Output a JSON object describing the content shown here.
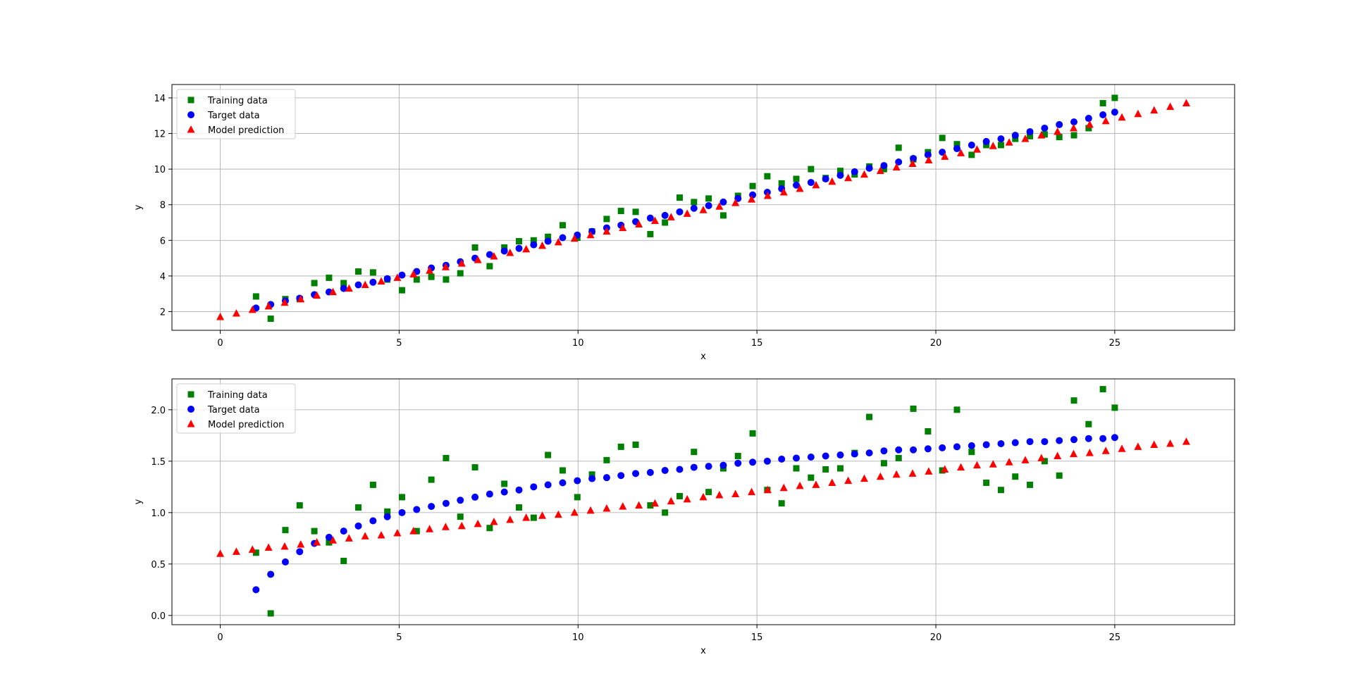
{
  "colors": {
    "training": "#008000",
    "target": "#0000ff",
    "prediction": "#ff0000"
  },
  "chart_data": [
    {
      "type": "scatter",
      "xlabel": "x",
      "ylabel": "y",
      "xlim": [
        -1.35,
        28.35
      ],
      "ylim": [
        0.95,
        14.75
      ],
      "xticks": [
        0,
        5,
        10,
        15,
        20,
        25
      ],
      "yticks": [
        2,
        4,
        6,
        8,
        10,
        12,
        14
      ],
      "ytick_labels": [
        "2",
        "4",
        "6",
        "8",
        "10",
        "12",
        "14"
      ],
      "grid": true,
      "legend": "top-left",
      "series": [
        {
          "name": "Training data",
          "marker": "square",
          "color": "#008000",
          "x": [
            1.0,
            1.41,
            1.82,
            2.22,
            2.63,
            3.04,
            3.45,
            3.86,
            4.27,
            4.67,
            5.08,
            5.49,
            5.9,
            6.31,
            6.71,
            7.12,
            7.53,
            7.94,
            8.35,
            8.76,
            9.16,
            9.57,
            9.98,
            10.39,
            10.8,
            11.2,
            11.61,
            12.02,
            12.43,
            12.84,
            13.24,
            13.65,
            14.06,
            14.47,
            14.88,
            15.29,
            15.69,
            16.1,
            16.51,
            16.92,
            17.33,
            17.73,
            18.14,
            18.55,
            18.96,
            19.37,
            19.78,
            20.18,
            20.59,
            21.0,
            21.41,
            21.82,
            22.22,
            22.63,
            23.04,
            23.45,
            23.86,
            24.27,
            24.67,
            25.0
          ],
          "y": [
            2.85,
            1.6,
            2.7,
            2.7,
            3.6,
            3.9,
            3.6,
            4.25,
            4.2,
            3.8,
            3.2,
            3.8,
            3.95,
            3.8,
            4.15,
            5.6,
            4.55,
            5.6,
            5.95,
            6.0,
            6.2,
            6.85,
            6.15,
            6.5,
            7.2,
            7.65,
            7.6,
            6.35,
            7.0,
            8.4,
            8.15,
            8.35,
            7.4,
            8.5,
            9.05,
            9.6,
            9.2,
            9.45,
            10.0,
            9.5,
            9.9,
            9.7,
            10.15,
            10.0,
            11.2,
            10.55,
            10.95,
            11.75,
            11.4,
            10.8,
            11.35,
            11.35,
            11.7,
            11.85,
            11.95,
            11.8,
            11.9,
            12.3,
            13.7,
            14.0
          ]
        },
        {
          "name": "Target data",
          "marker": "circle",
          "color": "#0000ff",
          "x": [
            1.0,
            1.41,
            1.82,
            2.22,
            2.63,
            3.04,
            3.45,
            3.86,
            4.27,
            4.67,
            5.08,
            5.49,
            5.9,
            6.31,
            6.71,
            7.12,
            7.53,
            7.94,
            8.35,
            8.76,
            9.16,
            9.57,
            9.98,
            10.39,
            10.8,
            11.2,
            11.61,
            12.02,
            12.43,
            12.84,
            13.24,
            13.65,
            14.06,
            14.47,
            14.88,
            15.29,
            15.69,
            16.1,
            16.51,
            16.92,
            17.33,
            17.73,
            18.14,
            18.55,
            18.96,
            19.37,
            19.78,
            20.18,
            20.59,
            21.0,
            21.41,
            21.82,
            22.22,
            22.63,
            23.04,
            23.45,
            23.86,
            24.27,
            24.67,
            25.0
          ],
          "y": [
            2.2,
            2.4,
            2.6,
            2.75,
            2.95,
            3.1,
            3.3,
            3.5,
            3.65,
            3.85,
            4.05,
            4.25,
            4.45,
            4.6,
            4.8,
            5.0,
            5.2,
            5.4,
            5.55,
            5.75,
            5.95,
            6.15,
            6.3,
            6.5,
            6.7,
            6.85,
            7.05,
            7.25,
            7.4,
            7.6,
            7.8,
            7.95,
            8.15,
            8.35,
            8.55,
            8.7,
            8.9,
            9.1,
            9.25,
            9.45,
            9.65,
            9.85,
            10.05,
            10.2,
            10.4,
            10.6,
            10.8,
            10.95,
            11.15,
            11.35,
            11.55,
            11.7,
            11.9,
            12.1,
            12.3,
            12.5,
            12.65,
            12.85,
            13.05,
            13.2
          ]
        },
        {
          "name": "Model prediction",
          "marker": "triangle",
          "color": "#ff0000",
          "x": [
            0.0,
            0.45,
            0.9,
            1.35,
            1.8,
            2.25,
            2.7,
            3.15,
            3.6,
            4.05,
            4.5,
            4.95,
            5.4,
            5.85,
            6.3,
            6.75,
            7.2,
            7.65,
            8.1,
            8.55,
            9.0,
            9.45,
            9.9,
            10.35,
            10.8,
            11.25,
            11.7,
            12.15,
            12.6,
            13.05,
            13.5,
            13.95,
            14.4,
            14.85,
            15.3,
            15.75,
            16.2,
            16.65,
            17.1,
            17.55,
            18.0,
            18.45,
            18.9,
            19.35,
            19.8,
            20.25,
            20.7,
            21.15,
            21.6,
            22.05,
            22.5,
            22.95,
            23.4,
            23.85,
            24.3,
            24.75,
            25.2,
            25.65,
            26.1,
            26.55,
            27.0
          ],
          "y": [
            1.7,
            1.9,
            2.1,
            2.3,
            2.5,
            2.7,
            2.9,
            3.1,
            3.3,
            3.5,
            3.7,
            3.9,
            4.1,
            4.3,
            4.5,
            4.7,
            4.9,
            5.1,
            5.3,
            5.5,
            5.7,
            5.9,
            6.1,
            6.3,
            6.5,
            6.7,
            6.9,
            7.1,
            7.3,
            7.5,
            7.7,
            7.9,
            8.1,
            8.3,
            8.5,
            8.7,
            8.9,
            9.1,
            9.3,
            9.5,
            9.7,
            9.9,
            10.1,
            10.3,
            10.5,
            10.7,
            10.9,
            11.1,
            11.3,
            11.5,
            11.7,
            11.9,
            12.1,
            12.3,
            12.5,
            12.7,
            12.9,
            13.1,
            13.3,
            13.5,
            13.7
          ]
        }
      ]
    },
    {
      "type": "scatter",
      "xlabel": "x",
      "ylabel": "y",
      "xlim": [
        -1.35,
        28.35
      ],
      "ylim": [
        -0.09,
        2.3
      ],
      "xticks": [
        0,
        5,
        10,
        15,
        20,
        25
      ],
      "yticks": [
        0.0,
        0.5,
        1.0,
        1.5,
        2.0
      ],
      "ytick_labels": [
        "0.0",
        "0.5",
        "1.0",
        "1.5",
        "2.0"
      ],
      "grid": true,
      "legend": "top-left",
      "series": [
        {
          "name": "Training data",
          "marker": "square",
          "color": "#008000",
          "x": [
            1.0,
            1.41,
            1.82,
            2.22,
            2.63,
            3.04,
            3.45,
            3.86,
            4.27,
            4.67,
            5.08,
            5.49,
            5.9,
            6.31,
            6.71,
            7.12,
            7.53,
            7.94,
            8.35,
            8.76,
            9.16,
            9.57,
            9.98,
            10.39,
            10.8,
            11.2,
            11.61,
            12.02,
            12.43,
            12.84,
            13.24,
            13.65,
            14.06,
            14.47,
            14.88,
            15.29,
            15.69,
            16.1,
            16.51,
            16.92,
            17.33,
            17.73,
            18.14,
            18.55,
            18.96,
            19.37,
            19.78,
            20.18,
            20.59,
            21.0,
            21.41,
            21.82,
            22.22,
            22.63,
            23.04,
            23.45,
            23.86,
            24.27,
            24.67,
            25.0
          ],
          "y": [
            0.61,
            0.02,
            0.83,
            1.07,
            0.82,
            0.71,
            0.53,
            1.05,
            1.27,
            1.01,
            1.15,
            0.82,
            1.32,
            1.53,
            0.96,
            1.44,
            0.85,
            1.28,
            1.05,
            0.95,
            1.56,
            1.41,
            1.15,
            1.37,
            1.51,
            1.64,
            1.66,
            1.07,
            1.0,
            1.16,
            1.59,
            1.2,
            1.43,
            1.55,
            1.77,
            1.22,
            1.09,
            1.43,
            1.34,
            1.42,
            1.43,
            1.58,
            1.93,
            1.48,
            1.53,
            2.01,
            1.79,
            1.41,
            2.0,
            1.59,
            1.29,
            1.22,
            1.35,
            1.27,
            1.5,
            1.36,
            2.09,
            1.86,
            2.2,
            2.02
          ]
        },
        {
          "name": "Target data",
          "marker": "circle",
          "color": "#0000ff",
          "x": [
            1.0,
            1.41,
            1.82,
            2.22,
            2.63,
            3.04,
            3.45,
            3.86,
            4.27,
            4.67,
            5.08,
            5.49,
            5.9,
            6.31,
            6.71,
            7.12,
            7.53,
            7.94,
            8.35,
            8.76,
            9.16,
            9.57,
            9.98,
            10.39,
            10.8,
            11.2,
            11.61,
            12.02,
            12.43,
            12.84,
            13.24,
            13.65,
            14.06,
            14.47,
            14.88,
            15.29,
            15.69,
            16.1,
            16.51,
            16.92,
            17.33,
            17.73,
            18.14,
            18.55,
            18.96,
            19.37,
            19.78,
            20.18,
            20.59,
            21.0,
            21.41,
            21.82,
            22.22,
            22.63,
            23.04,
            23.45,
            23.86,
            24.27,
            24.67,
            25.0
          ],
          "y": [
            0.25,
            0.4,
            0.52,
            0.62,
            0.7,
            0.76,
            0.82,
            0.87,
            0.92,
            0.96,
            1.0,
            1.03,
            1.06,
            1.09,
            1.12,
            1.15,
            1.18,
            1.2,
            1.22,
            1.25,
            1.27,
            1.29,
            1.31,
            1.33,
            1.34,
            1.36,
            1.38,
            1.39,
            1.41,
            1.42,
            1.44,
            1.45,
            1.46,
            1.48,
            1.49,
            1.5,
            1.52,
            1.53,
            1.54,
            1.55,
            1.56,
            1.57,
            1.58,
            1.6,
            1.61,
            1.61,
            1.62,
            1.63,
            1.64,
            1.65,
            1.66,
            1.67,
            1.68,
            1.69,
            1.69,
            1.7,
            1.71,
            1.72,
            1.72,
            1.73
          ]
        },
        {
          "name": "Model prediction",
          "marker": "triangle",
          "color": "#ff0000",
          "x": [
            0.0,
            0.45,
            0.9,
            1.35,
            1.8,
            2.25,
            2.7,
            3.15,
            3.6,
            4.05,
            4.5,
            4.95,
            5.4,
            5.85,
            6.3,
            6.75,
            7.2,
            7.65,
            8.1,
            8.55,
            9.0,
            9.45,
            9.9,
            10.35,
            10.8,
            11.25,
            11.7,
            12.15,
            12.6,
            13.05,
            13.5,
            13.95,
            14.4,
            14.85,
            15.3,
            15.75,
            16.2,
            16.65,
            17.1,
            17.55,
            18.0,
            18.45,
            18.9,
            19.35,
            19.8,
            20.25,
            20.7,
            21.15,
            21.6,
            22.05,
            22.5,
            22.95,
            23.4,
            23.85,
            24.3,
            24.75,
            25.2,
            25.65,
            26.1,
            26.55,
            27.0
          ],
          "y": [
            0.6,
            0.62,
            0.64,
            0.66,
            0.67,
            0.69,
            0.71,
            0.73,
            0.75,
            0.77,
            0.78,
            0.8,
            0.82,
            0.84,
            0.86,
            0.87,
            0.89,
            0.91,
            0.93,
            0.95,
            0.97,
            0.98,
            1.0,
            1.02,
            1.04,
            1.06,
            1.07,
            1.09,
            1.11,
            1.13,
            1.15,
            1.17,
            1.18,
            1.2,
            1.22,
            1.24,
            1.26,
            1.27,
            1.29,
            1.31,
            1.33,
            1.35,
            1.37,
            1.38,
            1.4,
            1.42,
            1.44,
            1.46,
            1.47,
            1.49,
            1.51,
            1.53,
            1.55,
            1.57,
            1.58,
            1.6,
            1.62,
            1.64,
            1.66,
            1.67,
            1.69
          ]
        }
      ]
    }
  ]
}
